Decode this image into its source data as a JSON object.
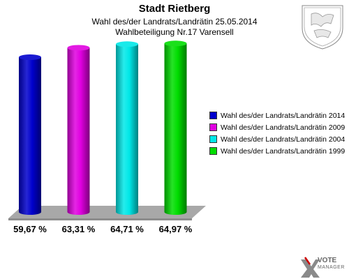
{
  "header": {
    "title": "Stadt Rietberg",
    "subtitle1": "Wahl des/der Landrats/Landrätin 25.05.2014",
    "subtitle2": "Wahlbeteiligung Nr.17 Varensell"
  },
  "chart_data": {
    "type": "bar",
    "categories": [
      "Wahl des/der Landrats/Landrätin 2014",
      "Wahl des/der Landrats/Landrätin 2009",
      "Wahl des/der Landrats/Landrätin 2004",
      "Wahl des/der Landrats/Landrätin 1999"
    ],
    "values": [
      59.67,
      63.31,
      64.71,
      64.97
    ],
    "value_labels": [
      "59,67 %",
      "63,31 %",
      "64,71 %",
      "64,97 %"
    ],
    "colors": [
      "#0000cc",
      "#e000e0",
      "#00e8e8",
      "#00dd00"
    ],
    "legend_position": "right",
    "grid": false
  },
  "logo": {
    "line1": "VOTE",
    "line2": "MANAGER"
  }
}
